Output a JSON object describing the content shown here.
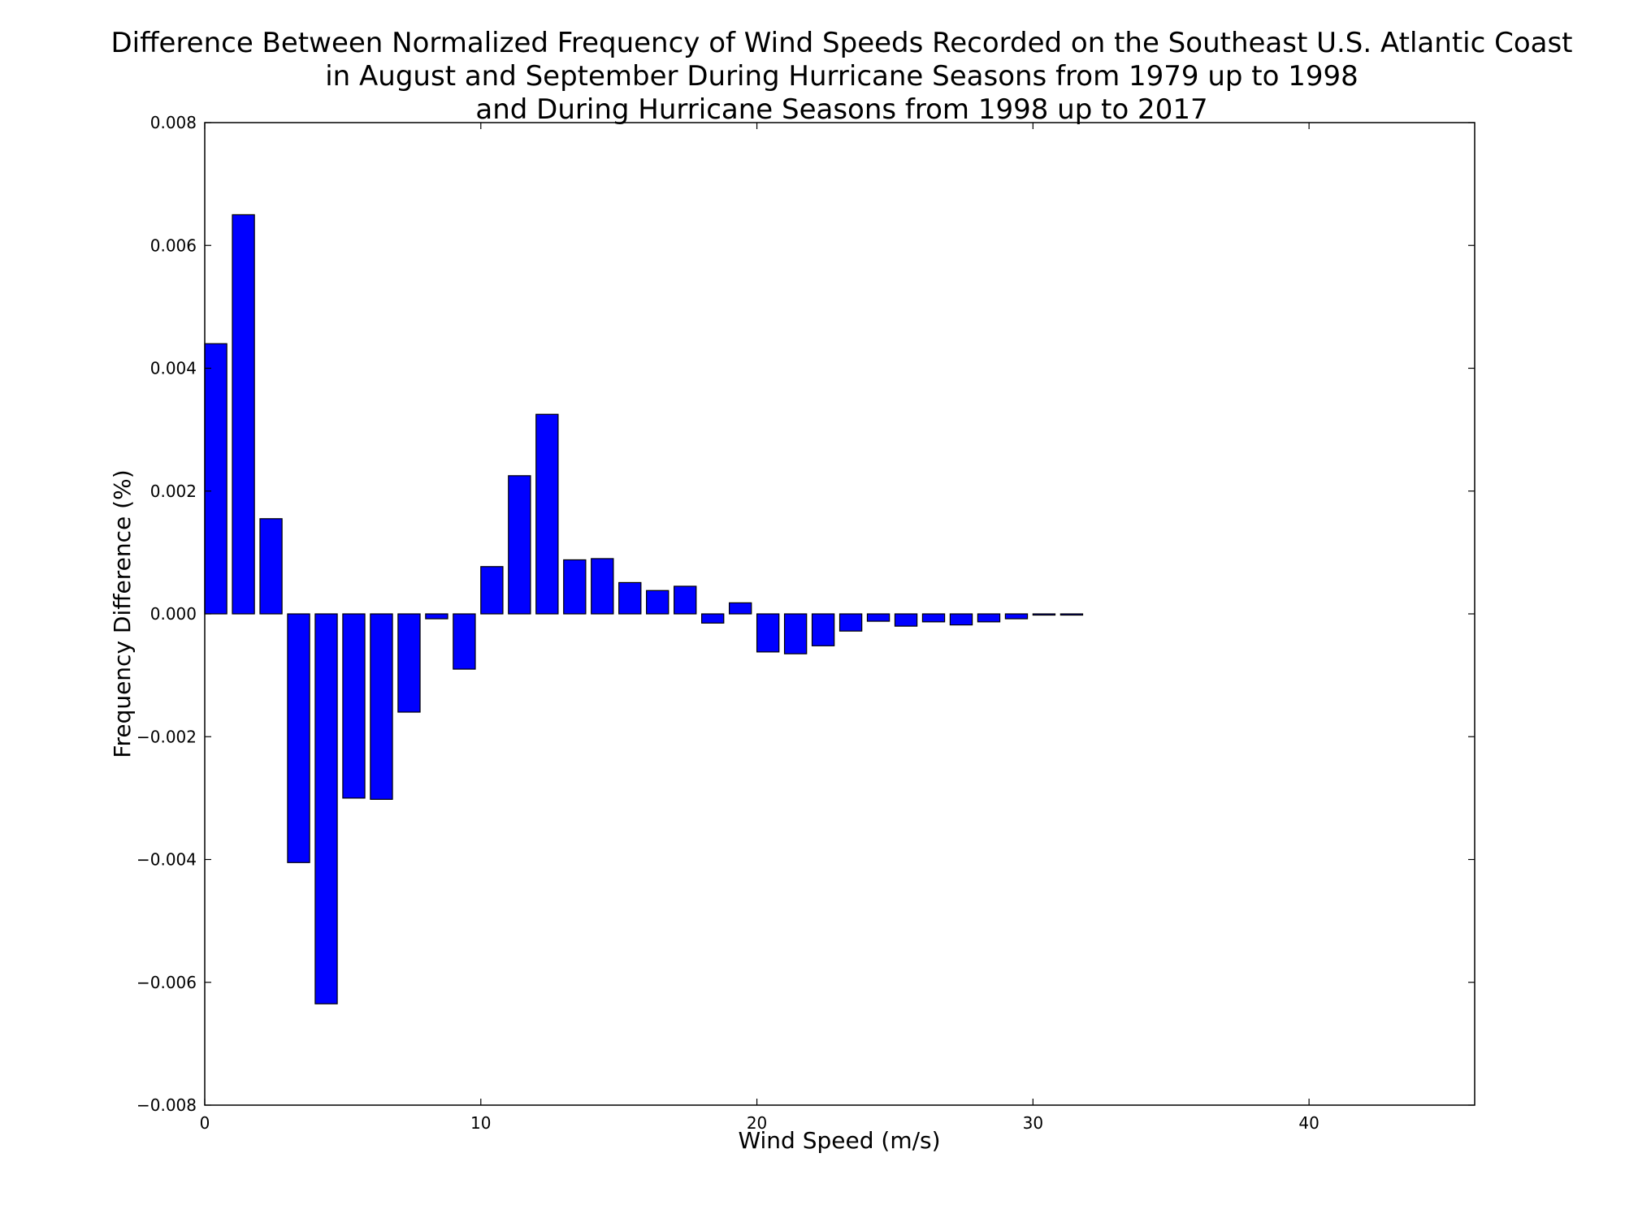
{
  "chart_data": {
    "type": "bar",
    "title_lines": [
      "Difference Between Normalized Frequency of Wind Speeds Recorded on the Southeast U.S. Atlantic Coast",
      "in August and September During Hurricane Seasons from 1979 up to 1998",
      "and During Hurricane Seasons from 1998 up to 2017"
    ],
    "xlabel": "Wind Speed (m/s)",
    "ylabel": "Frequency Difference (%)",
    "xlim": [
      0,
      46
    ],
    "ylim": [
      -0.008,
      0.008
    ],
    "x_ticks": [
      0,
      10,
      20,
      30,
      40
    ],
    "x_tick_labels": [
      "0",
      "10",
      "20",
      "30",
      "40"
    ],
    "y_ticks": [
      0.008,
      0.006,
      0.004,
      0.002,
      0.0,
      -0.002,
      -0.004,
      -0.006,
      -0.008
    ],
    "y_tick_labels": [
      "0.008",
      "0.006",
      "0.004",
      "0.002",
      "0.000",
      "−0.002",
      "−0.004",
      "−0.006",
      "−0.008"
    ],
    "bar_color": "#0000ff",
    "bar_edge_color": "#000000",
    "bar_width": 0.8,
    "grid": false,
    "x": [
      0,
      1,
      2,
      3,
      4,
      5,
      6,
      7,
      8,
      9,
      10,
      11,
      12,
      13,
      14,
      15,
      16,
      17,
      18,
      19,
      20,
      21,
      22,
      23,
      24,
      25,
      26,
      27,
      28,
      29,
      30,
      31,
      32,
      33,
      34,
      35,
      36,
      37,
      38,
      39,
      40,
      41,
      42,
      43,
      44
    ],
    "values": [
      0.0044,
      0.0065,
      0.00155,
      -0.00405,
      -0.00635,
      -0.003,
      -0.00302,
      -0.0016,
      -8e-05,
      -0.0009,
      0.00077,
      0.00225,
      0.00325,
      0.00088,
      0.0009,
      0.00051,
      0.00038,
      0.00045,
      -0.00015,
      0.00018,
      -0.00062,
      -0.00065,
      -0.00052,
      -0.00028,
      -0.00012,
      -0.0002,
      -0.00013,
      -0.00018,
      -0.00013,
      -8e-05,
      -2e-05,
      -2e-05,
      0,
      0,
      0,
      0,
      0,
      0,
      0,
      0,
      0,
      0,
      0,
      0,
      0
    ]
  }
}
